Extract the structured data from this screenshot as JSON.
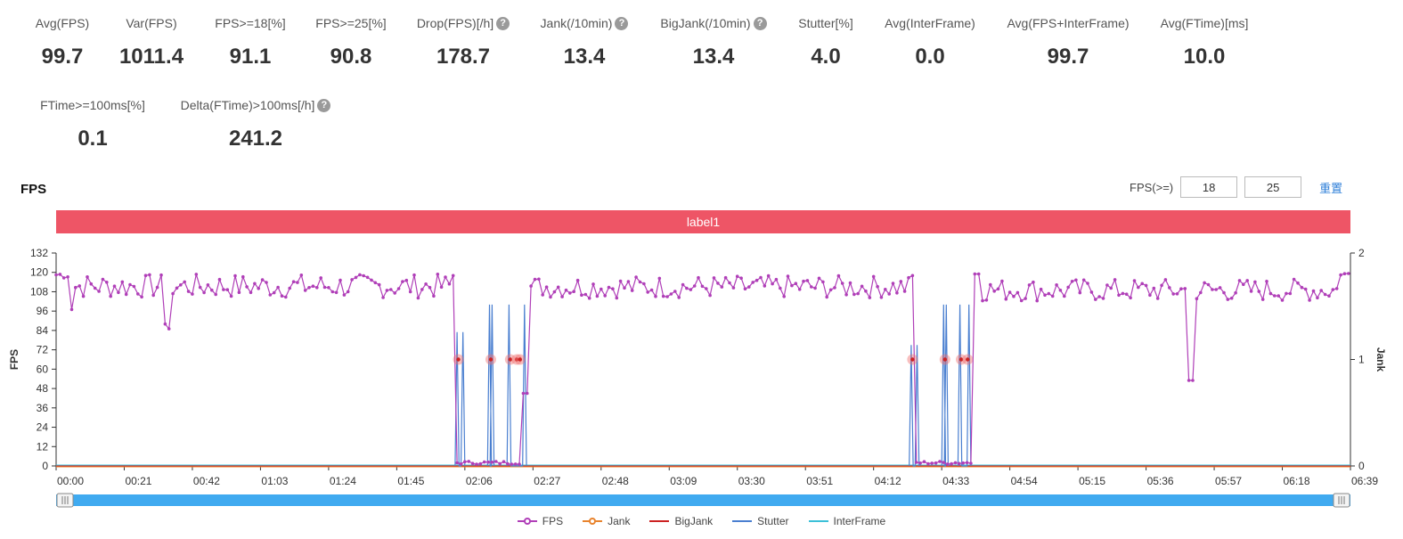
{
  "metrics": [
    {
      "label": "Avg(FPS)",
      "value": "99.7",
      "help": false
    },
    {
      "label": "Var(FPS)",
      "value": "1011.4",
      "help": false
    },
    {
      "label": "FPS>=18[%]",
      "value": "91.1",
      "help": false
    },
    {
      "label": "FPS>=25[%]",
      "value": "90.8",
      "help": false
    },
    {
      "label": "Drop(FPS)[/h]",
      "value": "178.7",
      "help": true
    },
    {
      "label": "Jank(/10min)",
      "value": "13.4",
      "help": true
    },
    {
      "label": "BigJank(/10min)",
      "value": "13.4",
      "help": true
    },
    {
      "label": "Stutter[%]",
      "value": "4.0",
      "help": false
    },
    {
      "label": "Avg(InterFrame)",
      "value": "0.0",
      "help": false
    },
    {
      "label": "Avg(FPS+InterFrame)",
      "value": "99.7",
      "help": false
    },
    {
      "label": "Avg(FTime)[ms]",
      "value": "10.0",
      "help": false
    },
    {
      "label": "FTime>=100ms[%]",
      "value": "0.1",
      "help": false
    },
    {
      "label": "Delta(FTime)>100ms[/h]",
      "value": "241.2",
      "help": true
    }
  ],
  "help_glyph": "?",
  "section_title": "FPS",
  "threshold": {
    "label": "FPS(>=)",
    "value1": "18",
    "value2": "25",
    "reset_label": "重置"
  },
  "label_bar": {
    "text": "label1",
    "color": "#ee5566"
  },
  "colors": {
    "fps": "#b03fb8",
    "jank": "#e8842e",
    "bigjank": "#cc2222",
    "stutter": "#4a7fd0",
    "interframe": "#3cc0d8",
    "jank_marker": "#f07070",
    "slider": "#40aaf0"
  },
  "chart_data": {
    "type": "line",
    "ylabel": "FPS",
    "y2label": "Jank",
    "ylim": [
      0,
      132
    ],
    "yticks": [
      0,
      12,
      24,
      36,
      48,
      60,
      72,
      84,
      96,
      108,
      120,
      132
    ],
    "y2lim": [
      0,
      2
    ],
    "y2ticks": [
      0,
      1,
      2
    ],
    "xlim": [
      0,
      399
    ],
    "xticks": [
      {
        "t": 0,
        "label": "00:00"
      },
      {
        "t": 21,
        "label": "00:21"
      },
      {
        "t": 42,
        "label": "00:42"
      },
      {
        "t": 63,
        "label": "01:03"
      },
      {
        "t": 84,
        "label": "01:24"
      },
      {
        "t": 105,
        "label": "01:45"
      },
      {
        "t": 126,
        "label": "02:06"
      },
      {
        "t": 147,
        "label": "02:27"
      },
      {
        "t": 168,
        "label": "02:48"
      },
      {
        "t": 189,
        "label": "03:09"
      },
      {
        "t": 210,
        "label": "03:30"
      },
      {
        "t": 231,
        "label": "03:51"
      },
      {
        "t": 252,
        "label": "04:12"
      },
      {
        "t": 273,
        "label": "04:33"
      },
      {
        "t": 294,
        "label": "04:54"
      },
      {
        "t": 315,
        "label": "05:15"
      },
      {
        "t": 336,
        "label": "05:36"
      },
      {
        "t": 357,
        "label": "05:57"
      },
      {
        "t": 378,
        "label": "06:18"
      },
      {
        "t": 399,
        "label": "06:39"
      }
    ],
    "legend_position": "bottom",
    "series_names": [
      "FPS",
      "Jank",
      "BigJank",
      "Stutter",
      "InterFrame"
    ],
    "jank_events": [
      124,
      134,
      140,
      142,
      143,
      264,
      274,
      279,
      281
    ],
    "stutter_segments": [
      {
        "start": 123,
        "end": 126,
        "peak": 83
      },
      {
        "start": 133,
        "end": 135,
        "peak": 100
      },
      {
        "start": 139,
        "end": 145,
        "peak": 100
      },
      {
        "start": 263,
        "end": 266,
        "peak": 75
      },
      {
        "start": 273,
        "end": 275,
        "peak": 100
      },
      {
        "start": 278,
        "end": 282,
        "peak": 100
      }
    ]
  }
}
